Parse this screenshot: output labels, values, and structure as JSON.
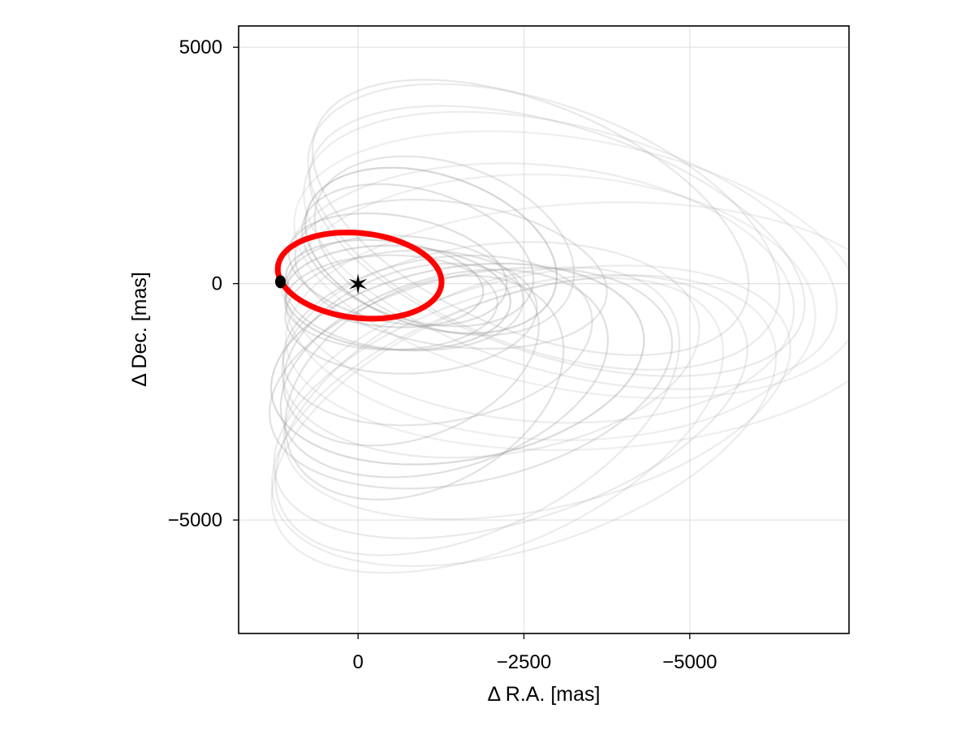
{
  "chart_data": {
    "type": "line",
    "title": "",
    "xlabel": "Δ R.A. [mas]",
    "ylabel": "Δ Dec. [mas]",
    "xlim": [
      1800,
      -7400
    ],
    "ylim": [
      -7400,
      5450
    ],
    "x_reversed": true,
    "grid": true,
    "x_ticks": [
      {
        "value": 0,
        "label": "0"
      },
      {
        "value": -2500,
        "label": "−2500"
      },
      {
        "value": -5000,
        "label": "−5000"
      }
    ],
    "y_ticks": [
      {
        "value": 5000,
        "label": "5000"
      },
      {
        "value": 0,
        "label": "0"
      },
      {
        "value": -5000,
        "label": "−5000"
      }
    ],
    "star": {
      "x": 0,
      "y": 0,
      "symbol": "✶",
      "color": "#000000"
    },
    "current_position": {
      "x": 1170,
      "y": 40,
      "color": "#000000"
    },
    "highlight_orbit": {
      "color": "#ff0000",
      "cx": -24,
      "cy": 170,
      "a": 1250,
      "b": 890,
      "angle_deg": 13
    },
    "sample_orbit_color": "#9e9e9e",
    "sample_orbits": [
      {
        "cx": -2800,
        "cy": 1200,
        "a": 4000,
        "b": 2400,
        "angle_deg": 35,
        "alpha": 0.22
      },
      {
        "cx": -3000,
        "cy": 900,
        "a": 4100,
        "b": 2300,
        "angle_deg": 30,
        "alpha": 0.22
      },
      {
        "cx": -2600,
        "cy": 1400,
        "a": 3800,
        "b": 2200,
        "angle_deg": 38,
        "alpha": 0.24
      },
      {
        "cx": -3200,
        "cy": 700,
        "a": 4300,
        "b": 2500,
        "angle_deg": 26,
        "alpha": 0.2
      },
      {
        "cx": -3300,
        "cy": 400,
        "a": 4400,
        "b": 2600,
        "angle_deg": 18,
        "alpha": 0.18
      },
      {
        "cx": -2700,
        "cy": -200,
        "a": 3900,
        "b": 2700,
        "angle_deg": 10,
        "alpha": 0.2
      },
      {
        "cx": -2900,
        "cy": -500,
        "a": 4000,
        "b": 2800,
        "angle_deg": 5,
        "alpha": 0.18
      },
      {
        "cx": -1100,
        "cy": 700,
        "a": 2100,
        "b": 1500,
        "angle_deg": 38,
        "alpha": 0.42
      },
      {
        "cx": -900,
        "cy": 600,
        "a": 1900,
        "b": 1300,
        "angle_deg": 33,
        "alpha": 0.32
      },
      {
        "cx": -1300,
        "cy": 800,
        "a": 2200,
        "b": 1600,
        "angle_deg": 42,
        "alpha": 0.28
      },
      {
        "cx": -600,
        "cy": -300,
        "a": 1700,
        "b": 1100,
        "angle_deg": 5,
        "alpha": 0.38
      },
      {
        "cx": -500,
        "cy": -400,
        "a": 1600,
        "b": 1000,
        "angle_deg": 0,
        "alpha": 0.3
      },
      {
        "cx": -700,
        "cy": -200,
        "a": 1800,
        "b": 1200,
        "angle_deg": 8,
        "alpha": 0.3
      },
      {
        "cx": -400,
        "cy": 0,
        "a": 1500,
        "b": 900,
        "angle_deg": 10,
        "alpha": 0.36
      },
      {
        "cx": -800,
        "cy": -600,
        "a": 1900,
        "b": 1300,
        "angle_deg": -5,
        "alpha": 0.3
      },
      {
        "cx": -1500,
        "cy": -1700,
        "a": 2900,
        "b": 2000,
        "angle_deg": -20,
        "alpha": 0.38
      },
      {
        "cx": -1700,
        "cy": -2000,
        "a": 3200,
        "b": 2100,
        "angle_deg": -25,
        "alpha": 0.3
      },
      {
        "cx": -1300,
        "cy": -1900,
        "a": 2700,
        "b": 1900,
        "angle_deg": -35,
        "alpha": 0.32
      },
      {
        "cx": -1000,
        "cy": -2200,
        "a": 2600,
        "b": 1800,
        "angle_deg": -55,
        "alpha": 0.3
      },
      {
        "cx": -2300,
        "cy": -2600,
        "a": 3900,
        "b": 2300,
        "angle_deg": -30,
        "alpha": 0.22
      },
      {
        "cx": -2500,
        "cy": -2900,
        "a": 4200,
        "b": 2500,
        "angle_deg": -32,
        "alpha": 0.2
      },
      {
        "cx": -2100,
        "cy": -3000,
        "a": 4000,
        "b": 2300,
        "angle_deg": -40,
        "alpha": 0.2
      },
      {
        "cx": -1800,
        "cy": -2700,
        "a": 3700,
        "b": 2200,
        "angle_deg": -45,
        "alpha": 0.22
      },
      {
        "cx": -2700,
        "cy": -2300,
        "a": 4000,
        "b": 2400,
        "angle_deg": -22,
        "alpha": 0.2
      },
      {
        "cx": -2000,
        "cy": -1400,
        "a": 3200,
        "b": 2200,
        "angle_deg": -15,
        "alpha": 0.22
      },
      {
        "cx": -800,
        "cy": -1500,
        "a": 2200,
        "b": 1600,
        "angle_deg": -45,
        "alpha": 0.3
      },
      {
        "cx": -1200,
        "cy": -1200,
        "a": 2400,
        "b": 1700,
        "angle_deg": -20,
        "alpha": 0.28
      },
      {
        "cx": -3500,
        "cy": -900,
        "a": 4600,
        "b": 2600,
        "angle_deg": -5,
        "alpha": 0.18
      },
      {
        "cx": -600,
        "cy": 300,
        "a": 1700,
        "b": 1100,
        "angle_deg": 20,
        "alpha": 0.34
      },
      {
        "cx": -1400,
        "cy": 200,
        "a": 2400,
        "b": 1500,
        "angle_deg": 15,
        "alpha": 0.28
      }
    ]
  }
}
